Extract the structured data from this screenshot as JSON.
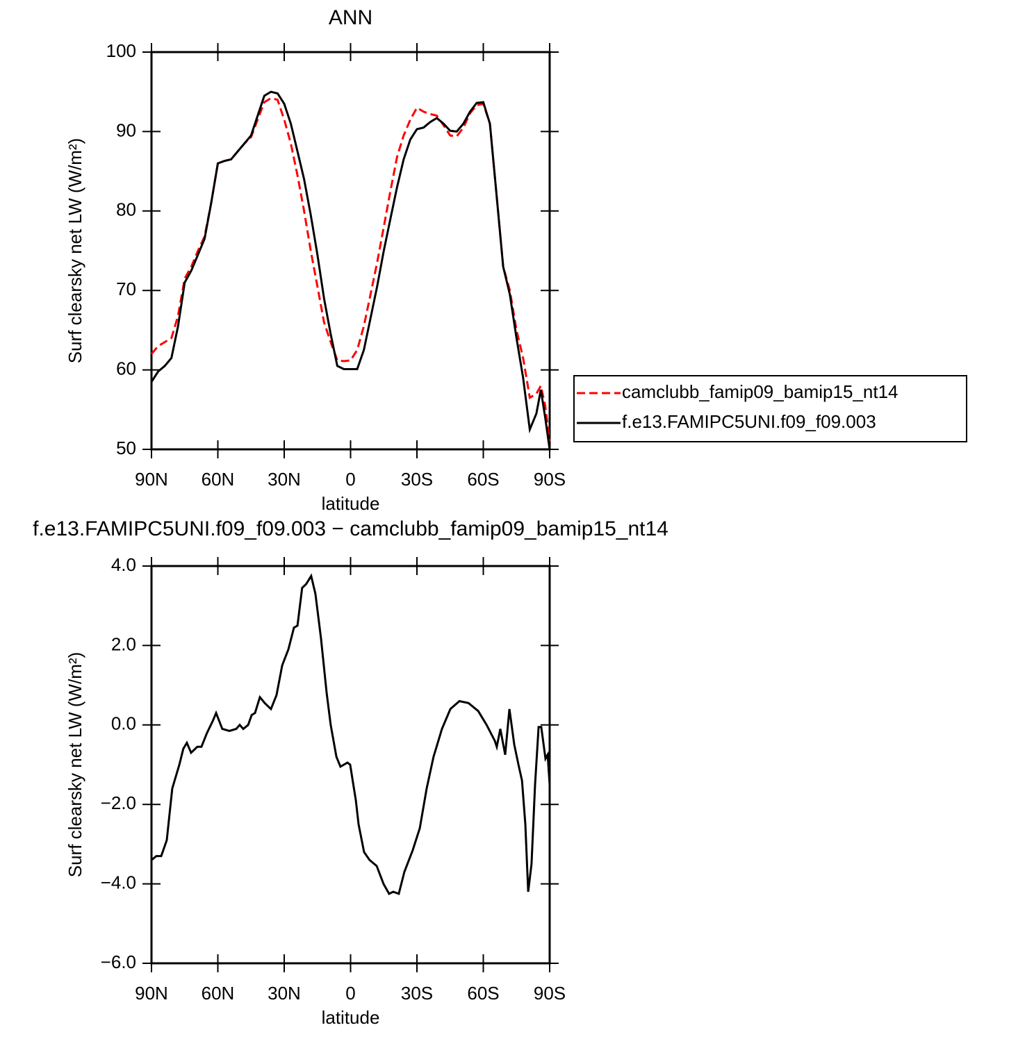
{
  "chart_data": [
    {
      "type": "line",
      "title": "ANN",
      "xlabel": "latitude",
      "ylabel": "Surf clearsky net LW (W/m²)",
      "x": [
        90,
        87,
        84,
        81,
        78,
        75,
        72,
        69,
        66,
        63,
        60,
        57,
        54,
        51,
        48,
        45,
        42,
        39,
        36,
        33,
        30,
        27,
        24,
        21,
        18,
        15,
        12,
        9,
        6,
        3,
        0,
        -3,
        -6,
        -9,
        -12,
        -15,
        -18,
        -21,
        -24,
        -27,
        -30,
        -33,
        -36,
        -39,
        -42,
        -45,
        -48,
        -51,
        -54,
        -57,
        -60,
        -63,
        -66,
        -69,
        -72,
        -75,
        -78,
        -81,
        -84,
        -86,
        -88,
        -90
      ],
      "series": [
        {
          "name": "camclubb_famip09_bamip15_nt14",
          "color": "#ff0000",
          "style": "dashed",
          "values": [
            62,
            63,
            63.5,
            64,
            66.8,
            71.5,
            73,
            75,
            76.8,
            81,
            86,
            86.3,
            86.5,
            87.5,
            88.5,
            89.3,
            91.5,
            93.7,
            94.2,
            94,
            91.5,
            88.5,
            84.5,
            80,
            75,
            70.5,
            66,
            63.5,
            61.2,
            61.1,
            61.2,
            62.5,
            65.5,
            69.5,
            73.5,
            78,
            82.5,
            86.8,
            89.5,
            91.5,
            93,
            92.5,
            92.2,
            92,
            90.8,
            89.5,
            89.4,
            90.5,
            92.3,
            93.3,
            93.5,
            91,
            82,
            73,
            70,
            65,
            61.5,
            56.5,
            57,
            58,
            55.5,
            51
          ]
        },
        {
          "name": "f.e13.FAMIPC5UNI.f09_f09.003",
          "color": "#000000",
          "style": "solid",
          "values": [
            58.5,
            59.8,
            60.5,
            61.5,
            65.5,
            71,
            72.5,
            74.5,
            76.5,
            81,
            86,
            86.3,
            86.5,
            87.5,
            88.5,
            89.5,
            92,
            94.5,
            95,
            94.8,
            93.5,
            91,
            87.5,
            84,
            79.5,
            74.5,
            69,
            64.5,
            60.5,
            60.1,
            60.1,
            60.1,
            62.5,
            66.5,
            70.5,
            75,
            79,
            83,
            86.5,
            89,
            90.3,
            90.5,
            91.2,
            91.7,
            91,
            90.1,
            90,
            91,
            92.5,
            93.6,
            93.7,
            91,
            82,
            73,
            69.5,
            64,
            59,
            52.5,
            54.5,
            57.5,
            54,
            50
          ]
        }
      ],
      "xlim": [
        90,
        -90
      ],
      "ylim": [
        50,
        100
      ],
      "xticks": [
        {
          "value": 90,
          "label": "90N"
        },
        {
          "value": 60,
          "label": "60N"
        },
        {
          "value": 30,
          "label": "30N"
        },
        0,
        {
          "value": -30,
          "label": "30S"
        },
        {
          "value": -60,
          "label": "60S"
        },
        {
          "value": -90,
          "label": "90S"
        }
      ],
      "yticks": [
        50,
        60,
        70,
        80,
        90,
        100
      ],
      "legend": "right"
    },
    {
      "type": "line",
      "title": "f.e13.FAMIPC5UNI.f09_f09.003 − camclubb_famip09_bamip15_nt14",
      "xlabel": "latitude",
      "ylabel": "Surf clearsky net LW (W/m²)",
      "x": [
        90,
        87.8,
        85.6,
        83.1,
        80.6,
        77.4,
        75.6,
        74,
        72.1,
        69.3,
        67.4,
        64.9,
        62.3,
        60.8,
        58,
        54.8,
        51.7,
        50.1,
        48.5,
        46.3,
        44.7,
        43.2,
        41,
        38.8,
        36,
        33.5,
        30.9,
        28.1,
        25.6,
        24,
        21.9,
        20,
        17.8,
        15.9,
        13.4,
        10.8,
        9,
        6.4,
        4.6,
        1.4,
        0.2,
        -2.4,
        -3.6,
        -6.1,
        -8.6,
        -11.8,
        -14.9,
        -17.4,
        -19.3,
        -21.8,
        -24.3,
        -28.1,
        -31.3,
        -34.4,
        -37.5,
        -41.3,
        -45.1,
        -49.2,
        -53.3,
        -57.7,
        -61.5,
        -65.2,
        -66.1,
        -67.7,
        -69.9,
        -71.8,
        -74,
        -75.9,
        -77.5,
        -79,
        -80.3,
        -81.8,
        -83.4,
        -85,
        -86.2,
        -88.1,
        -89.1,
        -90
      ],
      "series": [
        {
          "name": "f.e13.FAMIPC5UNI.f09_f09.003",
          "color": "#000000",
          "style": "solid",
          "values": [
            -3.4,
            -3.3,
            -3.3,
            -2.9,
            -1.6,
            -1,
            -0.6,
            -0.45,
            -0.7,
            -0.55,
            -0.55,
            -0.2,
            0.1,
            0.3,
            -0.1,
            -0.15,
            -0.1,
            0,
            -0.1,
            0,
            0.25,
            0.3,
            0.7,
            0.55,
            0.4,
            0.75,
            1.5,
            1.9,
            2.45,
            2.5,
            3.45,
            3.55,
            3.75,
            3.3,
            2.2,
            0.8,
            0,
            -0.8,
            -1.05,
            -0.95,
            -1,
            -1.9,
            -2.5,
            -3.2,
            -3.4,
            -3.55,
            -4,
            -4.25,
            -4.2,
            -4.25,
            -3.7,
            -3.15,
            -2.6,
            -1.6,
            -0.8,
            -0.1,
            0.4,
            0.6,
            0.55,
            0.35,
            0,
            -0.4,
            -0.55,
            -0.1,
            -0.75,
            0.4,
            -0.5,
            -1,
            -1.4,
            -2.5,
            -4.2,
            -3.5,
            -1.5,
            -0.05,
            -0.05,
            -0.85,
            -0.75,
            -1.5
          ]
        }
      ],
      "xlim": [
        90,
        -90
      ],
      "ylim": [
        -6,
        4
      ],
      "xticks": [
        {
          "value": 90,
          "label": "90N"
        },
        {
          "value": 60,
          "label": "60N"
        },
        {
          "value": 30,
          "label": "30N"
        },
        0,
        {
          "value": -30,
          "label": "30S"
        },
        {
          "value": -60,
          "label": "60S"
        },
        {
          "value": -90,
          "label": "90S"
        }
      ],
      "yticks": [
        {
          "value": -6,
          "label": "−6.0"
        },
        {
          "value": -4,
          "label": "−4.0"
        },
        {
          "value": -2,
          "label": "−2.0"
        },
        {
          "value": 0,
          "label": "0.0"
        },
        {
          "value": 2,
          "label": "2.0"
        },
        {
          "value": 4,
          "label": "4.0"
        }
      ]
    }
  ]
}
